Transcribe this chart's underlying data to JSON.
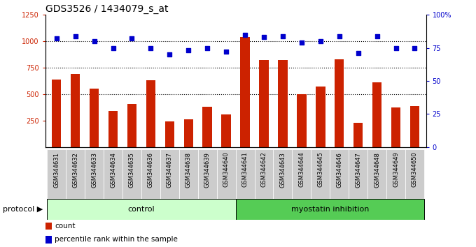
{
  "title": "GDS3526 / 1434079_s_at",
  "categories": [
    "GSM344631",
    "GSM344632",
    "GSM344633",
    "GSM344634",
    "GSM344635",
    "GSM344636",
    "GSM344637",
    "GSM344638",
    "GSM344639",
    "GSM344640",
    "GSM344641",
    "GSM344642",
    "GSM344643",
    "GSM344644",
    "GSM344645",
    "GSM344646",
    "GSM344647",
    "GSM344648",
    "GSM344649",
    "GSM344650"
  ],
  "bar_values": [
    640,
    690,
    555,
    340,
    410,
    630,
    240,
    260,
    380,
    310,
    1040,
    820,
    820,
    500,
    570,
    830,
    230,
    610,
    375,
    385
  ],
  "dot_values": [
    82,
    84,
    80,
    75,
    82,
    75,
    70,
    73,
    75,
    72,
    85,
    83,
    84,
    79,
    80,
    84,
    71,
    84,
    75,
    75
  ],
  "bar_color": "#cc2200",
  "dot_color": "#0000cc",
  "ylim_left": [
    0,
    1250
  ],
  "ylim_right": [
    0,
    100
  ],
  "yticks_left": [
    250,
    500,
    750,
    1000,
    1250
  ],
  "yticks_right": [
    0,
    25,
    50,
    75,
    100
  ],
  "grid_values": [
    500,
    750,
    1000
  ],
  "control_count": 10,
  "protocol_label": "protocol",
  "group_labels": [
    "control",
    "myostatin inhibition"
  ],
  "legend_items": [
    "count",
    "percentile rank within the sample"
  ],
  "legend_colors": [
    "#cc2200",
    "#0000cc"
  ],
  "bg_color": "#ffffff",
  "control_bg": "#ccffcc",
  "myostatin_bg": "#55cc55",
  "sample_label_bg": "#cccccc",
  "title_fontsize": 10,
  "bar_width": 0.5
}
